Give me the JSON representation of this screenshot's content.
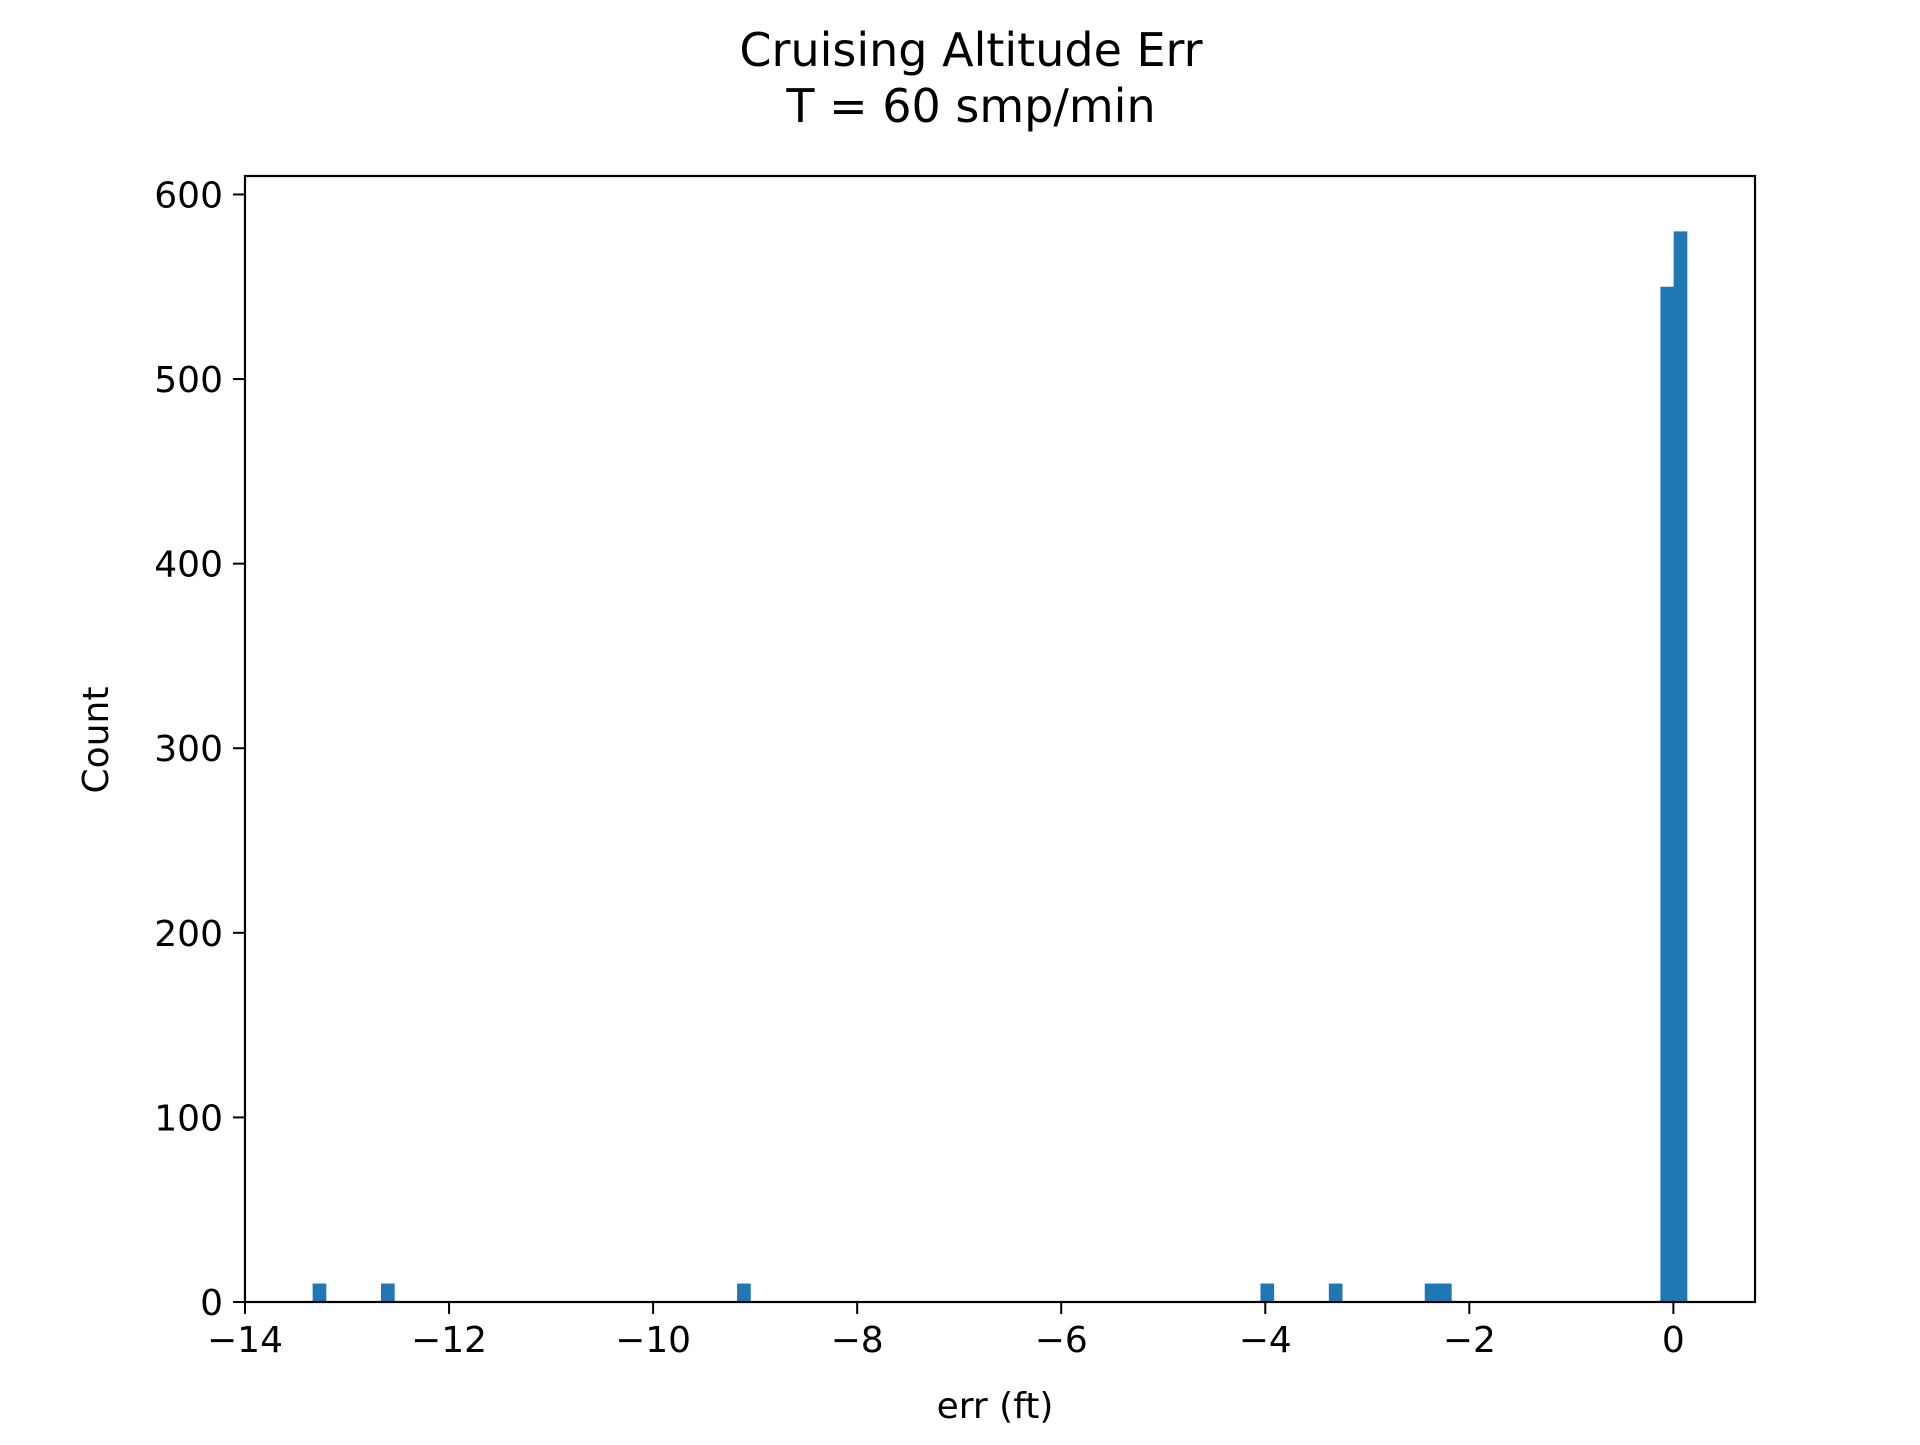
{
  "chart_data": {
    "type": "bar",
    "title": "Cruising Altitude Err",
    "subtitle": "T = 60 smp/min",
    "xlabel": "err (ft)",
    "ylabel": "Count",
    "xlim": [
      -14,
      0.8
    ],
    "ylim": [
      0,
      610
    ],
    "xticks": [
      -14,
      -12,
      -10,
      -8,
      -6,
      -4,
      -2,
      0
    ],
    "xtick_labels": [
      "−14",
      "−12",
      "−10",
      "−8",
      "−6",
      "−4",
      "−2",
      "0"
    ],
    "yticks": [
      0,
      100,
      200,
      300,
      400,
      500,
      600
    ],
    "ytick_labels": [
      "0",
      "100",
      "200",
      "300",
      "400",
      "500",
      "600"
    ],
    "bin_width": 0.134,
    "bins": [
      {
        "x": -13.27,
        "count": 10
      },
      {
        "x": -12.6,
        "count": 10
      },
      {
        "x": -9.11,
        "count": 10
      },
      {
        "x": -3.98,
        "count": 10
      },
      {
        "x": -3.31,
        "count": 10
      },
      {
        "x": -2.37,
        "count": 10
      },
      {
        "x": -2.24,
        "count": 10
      },
      {
        "x": -0.06,
        "count": 550
      },
      {
        "x": 0.07,
        "count": 580
      }
    ],
    "bar_color": "#1f77b4",
    "grid": false,
    "legend": "none"
  }
}
